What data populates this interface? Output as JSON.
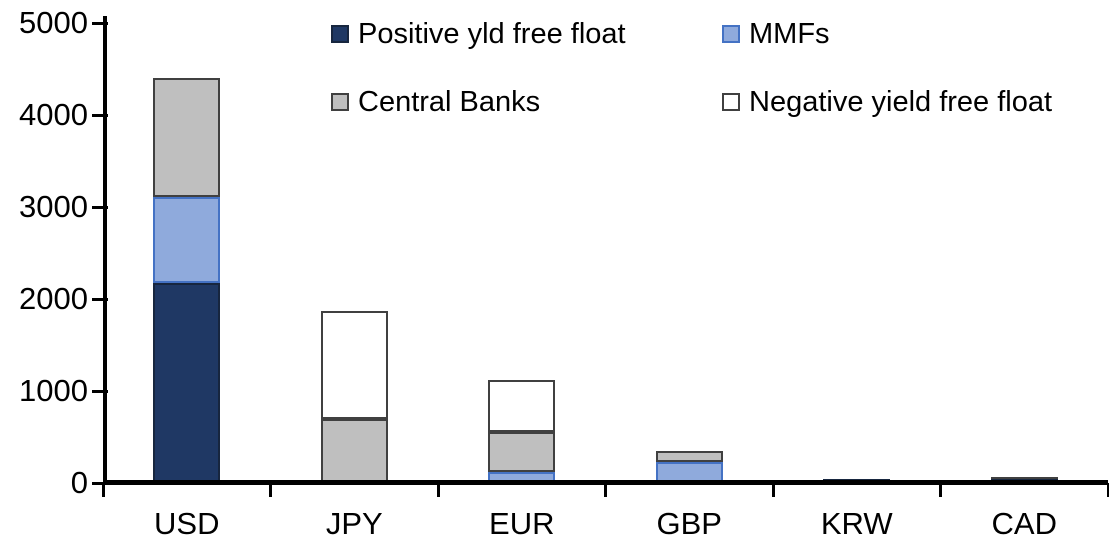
{
  "chart_data": {
    "type": "bar",
    "stacked": true,
    "title": "",
    "xlabel": "",
    "ylabel": "",
    "categories": [
      "USD",
      "JPY",
      "EUR",
      "GBP",
      "KRW",
      "CAD"
    ],
    "series": [
      {
        "name": "Positive yld free float",
        "color": "#1F3864",
        "border_color": "#17263F",
        "values": [
          2170,
          0,
          0,
          0,
          45,
          40
        ]
      },
      {
        "name": "MMFs",
        "color": "#8FAADC",
        "border_color": "#4472C4",
        "values": [
          940,
          0,
          120,
          230,
          0,
          0
        ]
      },
      {
        "name": "Central Banks",
        "color": "#BFBFBF",
        "border_color": "#404040",
        "values": [
          1290,
          700,
          430,
          120,
          0,
          20
        ]
      },
      {
        "name": "Negative yield free float",
        "color": "#FFFFFF",
        "border_color": "#404040",
        "values": [
          0,
          1170,
          570,
          0,
          0,
          0
        ]
      }
    ],
    "totals_by_category": [
      4400,
      1870,
      1120,
      350,
      45,
      60
    ],
    "ylim": [
      0,
      5000
    ],
    "ytick_interval": 1000,
    "ytick_labels": [
      "0",
      "1000",
      "2000",
      "3000",
      "4000",
      "5000"
    ],
    "grid": false,
    "legend_position": "top-two-columns",
    "axis_color": "#000000",
    "background_color": "#FFFFFF"
  }
}
